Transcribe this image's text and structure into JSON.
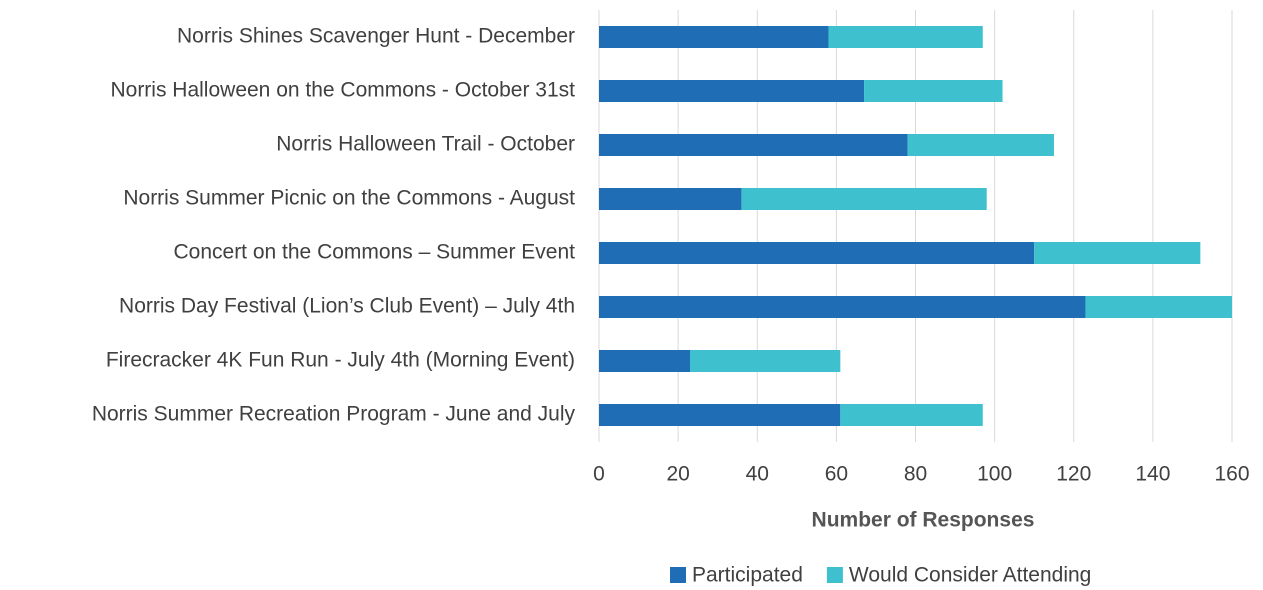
{
  "chart_data": {
    "type": "stacked_bar_horizontal",
    "x_label": "Number of Responses",
    "categories": [
      "Norris Shines Scavenger Hunt - December",
      "Norris Halloween on the Commons - October 31st",
      "Norris Halloween Trail - October",
      "Norris Summer Picnic on the Commons - August",
      "Concert on the Commons – Summer Event",
      "Norris Day Festival (Lion’s Club Event) – July 4th",
      "Firecracker 4K Fun Run - July 4th (Morning Event)",
      "Norris Summer Recreation Program - June and July"
    ],
    "series": [
      {
        "name": "Participated",
        "color": "#1f6db5",
        "values": [
          58,
          67,
          78,
          36,
          110,
          123,
          23,
          61
        ]
      },
      {
        "name": "Would Consider Attending",
        "color": "#3ec0cf",
        "values": [
          39,
          35,
          37,
          62,
          42,
          37,
          38,
          36
        ]
      }
    ],
    "xlim": [
      0,
      160
    ],
    "xticks": [
      0,
      20,
      40,
      60,
      80,
      100,
      120,
      140,
      160
    ],
    "grid": true,
    "legend": "bottom"
  }
}
